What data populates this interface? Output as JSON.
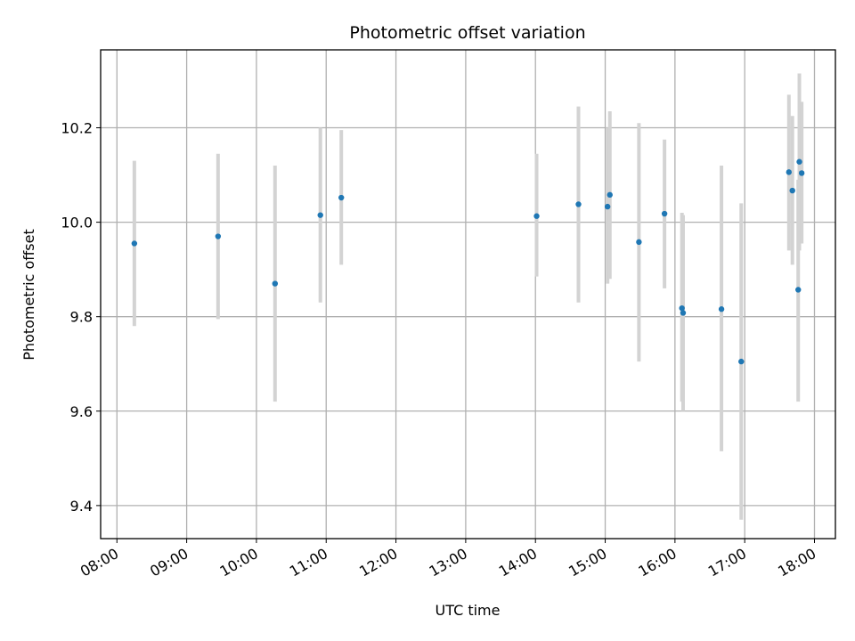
{
  "chart_data": {
    "type": "scatter",
    "title": "Photometric offset variation",
    "xlabel": "UTC time",
    "ylabel": "Photometric offset",
    "xlim": [
      "07:46",
      "18:18"
    ],
    "ylim": [
      9.33,
      10.365
    ],
    "grid": true,
    "x_ticks": [
      "08:00",
      "09:00",
      "10:00",
      "11:00",
      "12:00",
      "13:00",
      "14:00",
      "15:00",
      "16:00",
      "17:00",
      "18:00"
    ],
    "y_ticks": [
      9.4,
      9.6,
      9.8,
      10.0,
      10.2
    ],
    "y_tick_labels": [
      "9.4",
      "9.6",
      "9.8",
      "10.0",
      "10.2"
    ],
    "point_color": "#1f77b4",
    "errorbar_color": "#d3d3d3",
    "points": [
      {
        "x": "08:15",
        "y": 9.955,
        "ylow": 9.78,
        "yhigh": 10.13
      },
      {
        "x": "09:27",
        "y": 9.97,
        "ylow": 9.795,
        "yhigh": 10.145
      },
      {
        "x": "10:16",
        "y": 9.87,
        "ylow": 9.62,
        "yhigh": 10.12
      },
      {
        "x": "10:55",
        "y": 10.015,
        "ylow": 9.83,
        "yhigh": 10.2
      },
      {
        "x": "11:13",
        "y": 10.052,
        "ylow": 9.91,
        "yhigh": 10.195
      },
      {
        "x": "14:01",
        "y": 10.013,
        "ylow": 9.885,
        "yhigh": 10.145
      },
      {
        "x": "14:37",
        "y": 10.038,
        "ylow": 9.83,
        "yhigh": 10.245
      },
      {
        "x": "15:02",
        "y": 10.033,
        "ylow": 9.87,
        "yhigh": 10.2
      },
      {
        "x": "15:04",
        "y": 10.058,
        "ylow": 9.88,
        "yhigh": 10.235
      },
      {
        "x": "15:29",
        "y": 9.958,
        "ylow": 9.705,
        "yhigh": 10.21
      },
      {
        "x": "15:51",
        "y": 10.018,
        "ylow": 9.86,
        "yhigh": 10.175
      },
      {
        "x": "16:06",
        "y": 9.818,
        "ylow": 9.62,
        "yhigh": 10.02
      },
      {
        "x": "16:07",
        "y": 9.808,
        "ylow": 9.6,
        "yhigh": 10.015
      },
      {
        "x": "16:40",
        "y": 9.816,
        "ylow": 9.515,
        "yhigh": 10.12
      },
      {
        "x": "16:57",
        "y": 9.705,
        "ylow": 9.37,
        "yhigh": 10.04
      },
      {
        "x": "17:38",
        "y": 10.106,
        "ylow": 9.94,
        "yhigh": 10.27
      },
      {
        "x": "17:41",
        "y": 10.067,
        "ylow": 9.91,
        "yhigh": 10.225
      },
      {
        "x": "17:46",
        "y": 9.857,
        "ylow": 9.62,
        "yhigh": 10.09
      },
      {
        "x": "17:47",
        "y": 10.128,
        "ylow": 9.94,
        "yhigh": 10.315
      },
      {
        "x": "17:49",
        "y": 10.104,
        "ylow": 9.955,
        "yhigh": 10.255
      }
    ]
  }
}
